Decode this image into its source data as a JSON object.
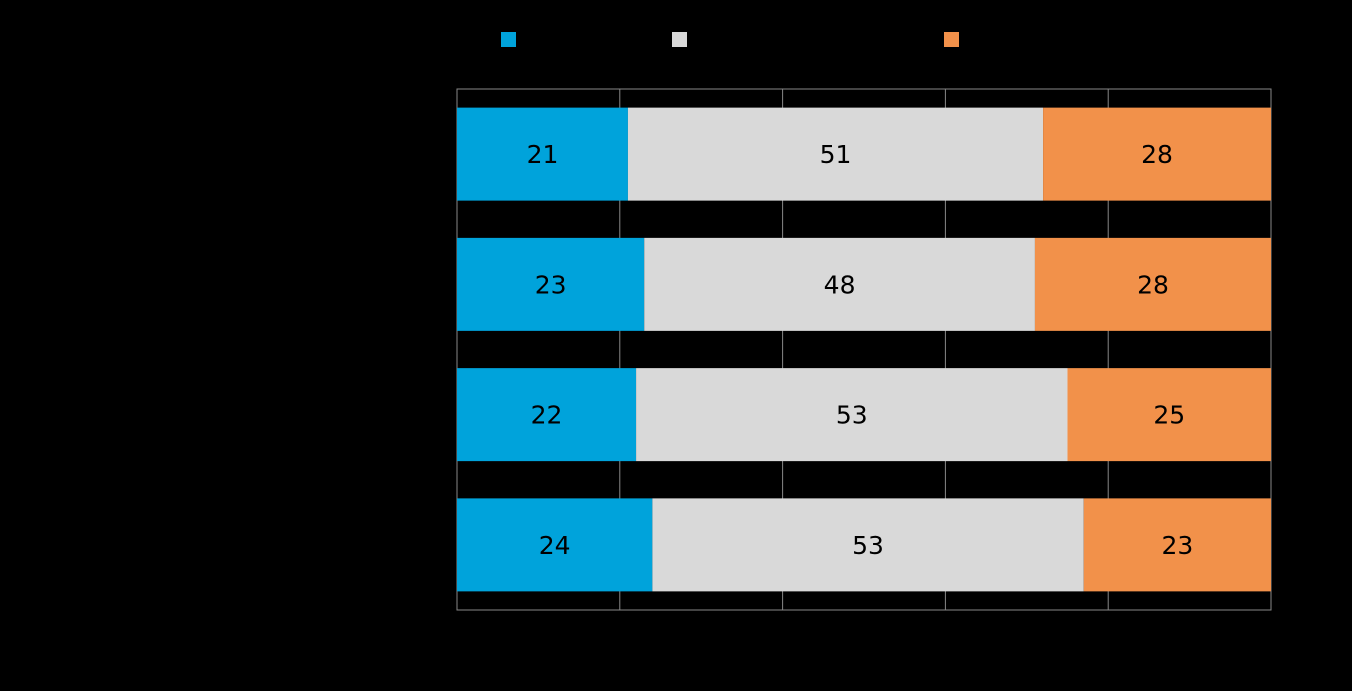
{
  "chart_data": {
    "type": "bar",
    "orientation": "horizontal",
    "stacked": true,
    "categories": [
      "",
      "",
      "",
      ""
    ],
    "series": [
      {
        "name": "",
        "color": "#00A3DB",
        "values": [
          21,
          23,
          22,
          24
        ]
      },
      {
        "name": "",
        "color": "#D9D9D9",
        "values": [
          51,
          48,
          53,
          53
        ]
      },
      {
        "name": "",
        "color": "#F2914A",
        "values": [
          28,
          28,
          25,
          23
        ]
      }
    ],
    "xlim": [
      0,
      100
    ],
    "grid": true,
    "legend_position": "top",
    "title": "",
    "xlabel": "",
    "ylabel": ""
  }
}
